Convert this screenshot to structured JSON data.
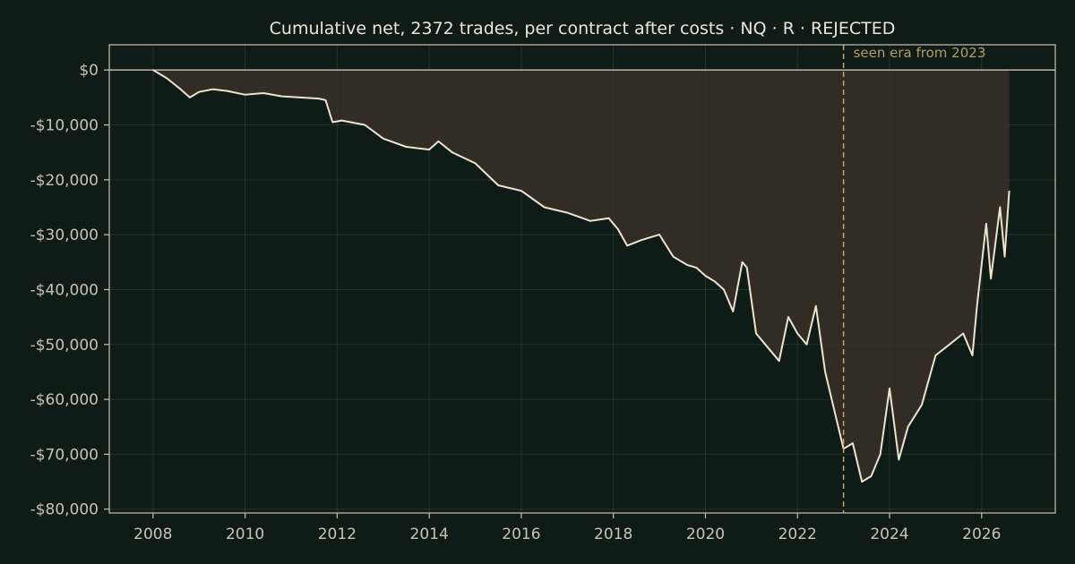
{
  "chart_data": {
    "type": "line",
    "title": "Cumulative net, 2372 trades, per contract after costs  ·  NQ · R · REJECTED",
    "xlabel": "",
    "ylabel": "",
    "xlim": [
      2007.05,
      2027.6
    ],
    "ylim": [
      -80700,
      4600
    ],
    "x_ticks": [
      2008,
      2010,
      2012,
      2014,
      2016,
      2018,
      2020,
      2022,
      2024,
      2026
    ],
    "x_tick_labels": [
      "2008",
      "2010",
      "2012",
      "2014",
      "2016",
      "2018",
      "2020",
      "2022",
      "2024",
      "2026"
    ],
    "y_ticks": [
      0,
      -10000,
      -20000,
      -30000,
      -40000,
      -50000,
      -60000,
      -70000,
      -80000
    ],
    "y_tick_labels": [
      "$0",
      "-$10,000",
      "-$20,000",
      "-$30,000",
      "-$40,000",
      "-$50,000",
      "-$60,000",
      "-$70,000",
      "-$80,000"
    ],
    "grid": true,
    "fill_under_zero": true,
    "annotation": {
      "x": 2023.0,
      "label": "seen era from 2023"
    },
    "series": [
      {
        "x": [
          2008.0,
          2008.3,
          2008.6,
          2008.8,
          2009.0,
          2009.3,
          2009.6,
          2010.0,
          2010.4,
          2010.8,
          2011.2,
          2011.6,
          2011.75,
          2011.9,
          2012.1,
          2012.6,
          2013.0,
          2013.5,
          2014.0,
          2014.2,
          2014.5,
          2015.0,
          2015.5,
          2016.0,
          2016.5,
          2017.0,
          2017.5,
          2017.9,
          2018.1,
          2018.3,
          2018.6,
          2019.0,
          2019.3,
          2019.6,
          2019.8,
          2020.0,
          2020.2,
          2020.4,
          2020.6,
          2020.8,
          2020.9,
          2021.1,
          2021.3,
          2021.6,
          2021.8,
          2022.0,
          2022.2,
          2022.4,
          2022.6,
          2022.8,
          2023.0,
          2023.2,
          2023.4,
          2023.6,
          2023.8,
          2024.0,
          2024.2,
          2024.4,
          2024.7,
          2025.0,
          2025.3,
          2025.6,
          2025.8,
          2025.9,
          2026.1,
          2026.2,
          2026.4,
          2026.5,
          2026.6
        ],
        "y": [
          0,
          -1500,
          -3500,
          -5000,
          -4000,
          -3500,
          -3800,
          -4500,
          -4200,
          -4800,
          -5000,
          -5200,
          -5500,
          -9500,
          -9200,
          -10000,
          -12500,
          -14000,
          -14500,
          -13000,
          -15000,
          -17000,
          -21000,
          -22000,
          -25000,
          -26000,
          -27500,
          -27000,
          -29000,
          -32000,
          -31000,
          -30000,
          -34000,
          -35500,
          -36000,
          -37500,
          -38500,
          -40000,
          -44000,
          -35000,
          -36000,
          -48000,
          -50000,
          -53000,
          -45000,
          -48000,
          -50000,
          -43000,
          -55000,
          -62000,
          -69000,
          -68000,
          -75000,
          -74000,
          -70000,
          -58000,
          -71000,
          -65000,
          -61000,
          -52000,
          -50000,
          -48000,
          -52000,
          -43000,
          -28000,
          -38000,
          -25000,
          -34000,
          -22000
        ]
      }
    ]
  }
}
